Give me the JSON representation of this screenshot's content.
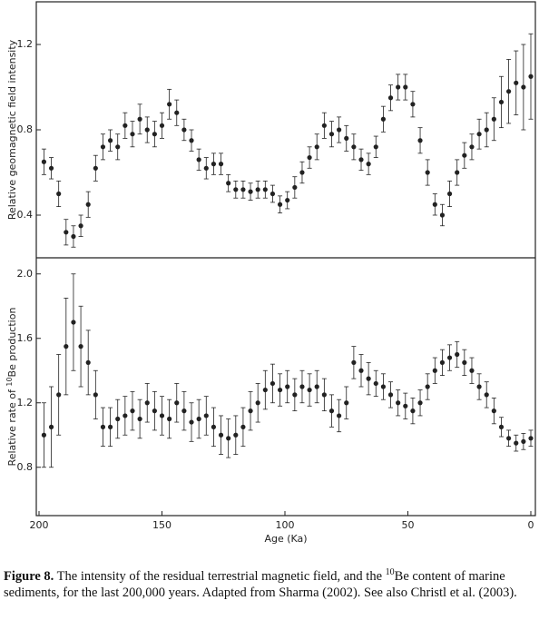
{
  "chart_data": [
    {
      "type": "errorbar",
      "ylabel": "Relative geomagnetic field intensity",
      "xlim": [
        200,
        0
      ],
      "ylim": [
        0.2,
        1.4
      ],
      "yticks": [
        0.4,
        0.8,
        1.2
      ],
      "color": "#222",
      "x": [
        198,
        195,
        192,
        189,
        186,
        183,
        180,
        177,
        174,
        171,
        168,
        165,
        162,
        159,
        156,
        153,
        150,
        147,
        144,
        141,
        138,
        135,
        132,
        129,
        126,
        123,
        120,
        117,
        114,
        111,
        108,
        105,
        102,
        99,
        96,
        93,
        90,
        87,
        84,
        81,
        78,
        75,
        72,
        69,
        66,
        63,
        60,
        57,
        54,
        51,
        48,
        45,
        42,
        39,
        36,
        33,
        30,
        27,
        24,
        21,
        18,
        15,
        12,
        9,
        6,
        3,
        0
      ],
      "values": [
        0.65,
        0.62,
        0.5,
        0.32,
        0.3,
        0.35,
        0.45,
        0.62,
        0.72,
        0.75,
        0.72,
        0.82,
        0.78,
        0.85,
        0.8,
        0.78,
        0.82,
        0.92,
        0.88,
        0.8,
        0.75,
        0.66,
        0.62,
        0.64,
        0.64,
        0.55,
        0.52,
        0.52,
        0.51,
        0.52,
        0.52,
        0.5,
        0.45,
        0.47,
        0.53,
        0.6,
        0.67,
        0.72,
        0.82,
        0.78,
        0.8,
        0.76,
        0.72,
        0.66,
        0.64,
        0.72,
        0.85,
        0.95,
        1.0,
        1.0,
        0.92,
        0.75,
        0.6,
        0.45,
        0.4,
        0.5,
        0.6,
        0.68,
        0.72,
        0.78,
        0.8,
        0.85,
        0.93,
        0.98,
        1.02,
        1.0,
        1.05
      ],
      "errors": [
        0.06,
        0.05,
        0.06,
        0.06,
        0.05,
        0.05,
        0.06,
        0.06,
        0.06,
        0.05,
        0.06,
        0.06,
        0.06,
        0.07,
        0.06,
        0.06,
        0.06,
        0.07,
        0.06,
        0.05,
        0.05,
        0.05,
        0.05,
        0.05,
        0.05,
        0.04,
        0.04,
        0.04,
        0.04,
        0.04,
        0.04,
        0.04,
        0.04,
        0.04,
        0.05,
        0.05,
        0.05,
        0.06,
        0.06,
        0.06,
        0.06,
        0.06,
        0.06,
        0.05,
        0.05,
        0.05,
        0.06,
        0.06,
        0.06,
        0.06,
        0.06,
        0.06,
        0.06,
        0.05,
        0.05,
        0.06,
        0.06,
        0.06,
        0.06,
        0.07,
        0.08,
        0.1,
        0.12,
        0.15,
        0.15,
        0.2,
        0.2
      ]
    },
    {
      "type": "errorbar",
      "ylabel_prefix": "Relative rate of ",
      "ylabel_sup": "10",
      "ylabel_suffix": "Be production",
      "xlabel": "Age (Ka)",
      "xlim": [
        200,
        0
      ],
      "xticks": [
        200,
        150,
        100,
        50,
        0
      ],
      "ylim": [
        0.5,
        2.1
      ],
      "yticks": [
        0.8,
        1.2,
        1.6,
        {
          "value": 2,
          "label": "2.0"
        }
      ],
      "color": "#222",
      "x": [
        198,
        195,
        192,
        189,
        186,
        183,
        180,
        177,
        174,
        171,
        168,
        165,
        162,
        159,
        156,
        153,
        150,
        147,
        144,
        141,
        138,
        135,
        132,
        129,
        126,
        123,
        120,
        117,
        114,
        111,
        108,
        105,
        102,
        99,
        96,
        93,
        90,
        87,
        84,
        81,
        78,
        75,
        72,
        69,
        66,
        63,
        60,
        57,
        54,
        51,
        48,
        45,
        42,
        39,
        36,
        33,
        30,
        27,
        24,
        21,
        18,
        15,
        12,
        9,
        6,
        3,
        0
      ],
      "values": [
        1.0,
        1.05,
        1.25,
        1.55,
        1.7,
        1.55,
        1.45,
        1.25,
        1.05,
        1.05,
        1.1,
        1.12,
        1.15,
        1.1,
        1.2,
        1.15,
        1.12,
        1.1,
        1.2,
        1.15,
        1.08,
        1.1,
        1.12,
        1.05,
        1.0,
        0.98,
        1.0,
        1.05,
        1.15,
        1.2,
        1.28,
        1.32,
        1.28,
        1.3,
        1.25,
        1.3,
        1.28,
        1.3,
        1.25,
        1.15,
        1.12,
        1.2,
        1.45,
        1.4,
        1.35,
        1.32,
        1.3,
        1.25,
        1.2,
        1.18,
        1.15,
        1.2,
        1.3,
        1.4,
        1.45,
        1.48,
        1.5,
        1.45,
        1.4,
        1.3,
        1.25,
        1.15,
        1.05,
        0.98,
        0.95,
        0.96,
        0.98
      ],
      "errors": [
        0.2,
        0.25,
        0.25,
        0.3,
        0.3,
        0.25,
        0.2,
        0.15,
        0.12,
        0.12,
        0.12,
        0.12,
        0.12,
        0.12,
        0.12,
        0.12,
        0.12,
        0.12,
        0.12,
        0.12,
        0.12,
        0.12,
        0.12,
        0.12,
        0.12,
        0.12,
        0.12,
        0.12,
        0.12,
        0.12,
        0.12,
        0.12,
        0.1,
        0.1,
        0.1,
        0.1,
        0.1,
        0.1,
        0.1,
        0.1,
        0.1,
        0.1,
        0.1,
        0.1,
        0.1,
        0.08,
        0.08,
        0.08,
        0.08,
        0.08,
        0.08,
        0.08,
        0.08,
        0.08,
        0.08,
        0.08,
        0.08,
        0.08,
        0.08,
        0.08,
        0.08,
        0.08,
        0.06,
        0.05,
        0.05,
        0.05,
        0.05
      ]
    }
  ],
  "caption": {
    "label": "Figure 8.",
    "text_before": " The intensity of the residual terrestrial magnetic field, and the ",
    "sup": "10",
    "text_after": "Be content of marine sediments, for the last 200,000 years. Adapted from Sharma (2002). See also Christl et al. (2003)."
  }
}
